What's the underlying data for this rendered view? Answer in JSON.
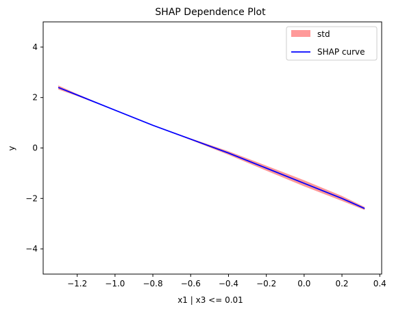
{
  "chart_data": {
    "type": "line",
    "title": "SHAP Dependence Plot",
    "xlabel": "x1 | x3 <= 0.01",
    "ylabel": "y",
    "xlim": [
      -1.38,
      0.41
    ],
    "ylim": [
      -5,
      5
    ],
    "xticks": [
      -1.2,
      -1.0,
      -0.8,
      -0.6,
      -0.4,
      -0.2,
      0.0,
      0.2,
      0.4
    ],
    "xtick_labels": [
      "−1.2",
      "−1.0",
      "−0.8",
      "−0.6",
      "−0.4",
      "−0.2",
      "0.0",
      "0.2",
      "0.4"
    ],
    "yticks": [
      -4,
      -2,
      0,
      2,
      4
    ],
    "ytick_labels": [
      "−4",
      "−2",
      "0",
      "2",
      "4"
    ],
    "grid": false,
    "legend_position": "top-right",
    "series": [
      {
        "name": "SHAP curve",
        "kind": "line",
        "color": "#0000ff",
        "x": [
          -1.3,
          -1.2,
          -1.0,
          -0.8,
          -0.6,
          -0.4,
          -0.2,
          0.0,
          0.2,
          0.32
        ],
        "y": [
          2.4,
          2.1,
          1.5,
          0.9,
          0.35,
          -0.2,
          -0.8,
          -1.4,
          -2.0,
          -2.4
        ]
      },
      {
        "name": "std",
        "kind": "band",
        "color": "#ff0000",
        "fill_opacity": 0.4,
        "x": [
          -1.3,
          -1.2,
          -1.0,
          -0.8,
          -0.6,
          -0.4,
          -0.2,
          0.0,
          0.2,
          0.32
        ],
        "lower": [
          2.32,
          2.06,
          1.49,
          0.89,
          0.32,
          -0.27,
          -0.9,
          -1.52,
          -2.1,
          -2.46
        ],
        "upper": [
          2.48,
          2.14,
          1.51,
          0.91,
          0.38,
          -0.13,
          -0.7,
          -1.28,
          -1.9,
          -2.34
        ]
      }
    ]
  }
}
